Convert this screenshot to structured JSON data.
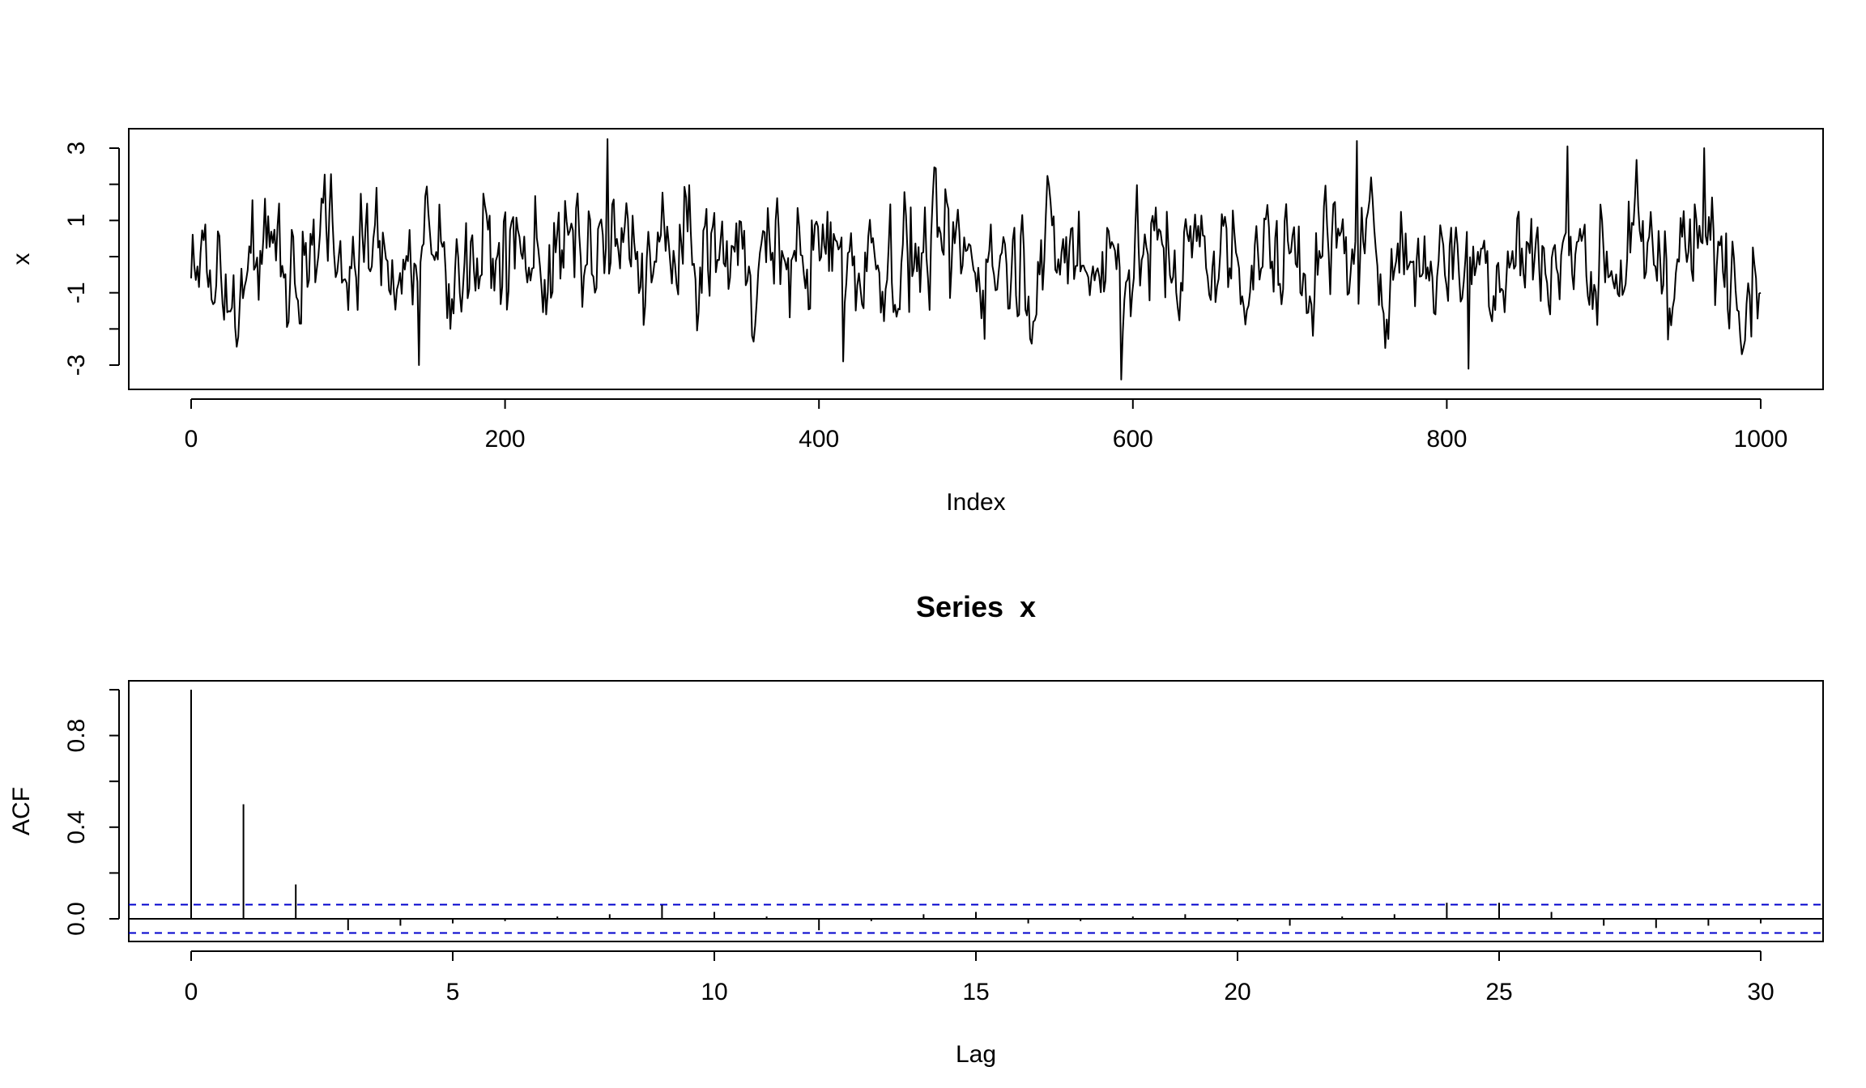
{
  "chart_data": [
    {
      "type": "line",
      "title": "",
      "xlabel": "Index",
      "ylabel": "x",
      "xlim": [
        0,
        1000
      ],
      "ylim": [
        -3.4,
        3.3
      ],
      "x_ticks": [
        "0",
        "200",
        "400",
        "600",
        "800",
        "1000"
      ],
      "x_tick_values": [
        0,
        200,
        400,
        600,
        800,
        1000
      ],
      "y_ticks": [
        "-3",
        "-1",
        "1",
        "3"
      ],
      "y_tick_values": [
        -3,
        -1,
        1,
        3
      ],
      "y_minor_ticks": [
        -3,
        -2,
        -1,
        0,
        1,
        2,
        3
      ],
      "series_note_points": 1000,
      "extremes": [
        {
          "x": 265,
          "y": 3.25
        },
        {
          "x": 592,
          "y": -3.4
        },
        {
          "x": 742,
          "y": 3.2
        },
        {
          "x": 145,
          "y": -3.0
        },
        {
          "x": 813,
          "y": -3.1
        },
        {
          "x": 876,
          "y": 3.05
        },
        {
          "x": 963,
          "y": 3.0
        },
        {
          "x": 415,
          "y": -2.9
        }
      ],
      "start_value": -0.6,
      "end_value": -1.0,
      "color": "#000000"
    },
    {
      "type": "bar",
      "title": "Series  x",
      "xlabel": "Lag",
      "ylabel": "ACF",
      "xlim": [
        0,
        30
      ],
      "ylim": [
        -0.05,
        1.0
      ],
      "x_ticks": [
        "0",
        "5",
        "10",
        "15",
        "20",
        "25",
        "30"
      ],
      "x_tick_values": [
        0,
        5,
        10,
        15,
        20,
        25,
        30
      ],
      "y_ticks": [
        "0.0",
        "0.4",
        "0.8"
      ],
      "y_tick_values": [
        0.0,
        0.4,
        0.8
      ],
      "y_minor_ticks": [
        0.0,
        0.2,
        0.4,
        0.6,
        0.8,
        1.0
      ],
      "lags": [
        0,
        1,
        2,
        3,
        4,
        5,
        6,
        7,
        8,
        9,
        10,
        11,
        12,
        13,
        14,
        15,
        16,
        17,
        18,
        19,
        20,
        21,
        22,
        23,
        24,
        25,
        26,
        27,
        28,
        29,
        30
      ],
      "values": [
        1.0,
        0.5,
        0.15,
        -0.05,
        -0.03,
        -0.02,
        -0.01,
        0.01,
        0.02,
        0.06,
        0.03,
        0.01,
        -0.05,
        -0.01,
        0.02,
        0.03,
        -0.02,
        -0.01,
        0.01,
        0.02,
        -0.01,
        -0.03,
        0.01,
        0.02,
        0.07,
        0.07,
        0.03,
        -0.03,
        -0.04,
        -0.03,
        -0.02
      ],
      "ci": 0.062,
      "ci_color": "#0000CD",
      "bar_color": "#000000"
    }
  ]
}
